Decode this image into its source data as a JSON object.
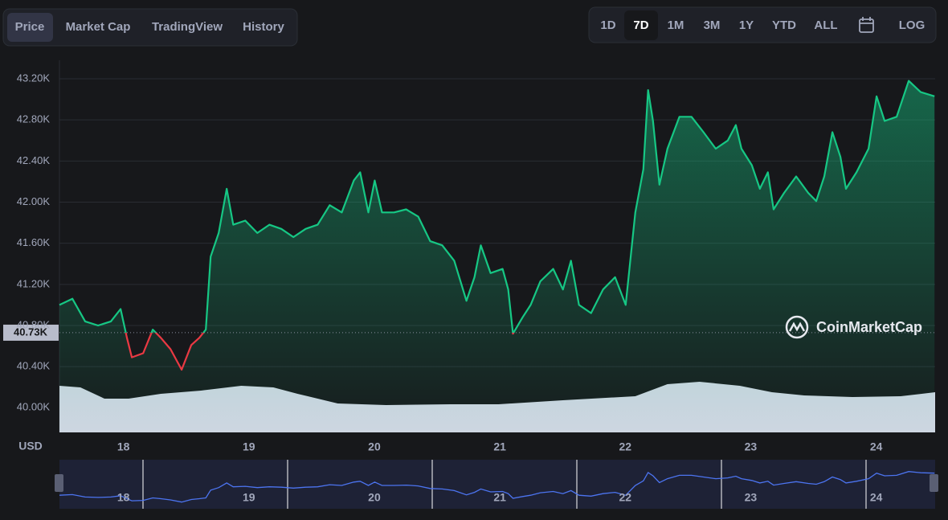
{
  "tabs": [
    "Price",
    "Market Cap",
    "TradingView",
    "History"
  ],
  "ranges": [
    "1D",
    "7D",
    "1M",
    "3M",
    "1Y",
    "YTD",
    "ALL"
  ],
  "log_button": "LOG",
  "watermark": "CoinMarketCap",
  "chart_data": {
    "type": "line",
    "y_label": "USD",
    "up_color": "#16c784",
    "down_color": "#ea3943",
    "nav_color": "#4c74f0",
    "reference": {
      "value": 40730,
      "label": "40.73K"
    },
    "xlim": [
      17.49,
      24.47
    ],
    "ylim": [
      39760,
      43380
    ],
    "xticks": [
      18,
      19,
      20,
      21,
      22,
      23,
      24
    ],
    "yticks": [
      {
        "value": 40000,
        "label": "40.00K"
      },
      {
        "value": 40400,
        "label": "40.40K"
      },
      {
        "value": 40800,
        "label": "40.80K"
      },
      {
        "value": 41200,
        "label": "41.20K"
      },
      {
        "value": 41600,
        "label": "41.60K"
      },
      {
        "value": 42000,
        "label": "42.00K"
      },
      {
        "value": 42400,
        "label": "42.40K"
      },
      {
        "value": 42800,
        "label": "42.80K"
      },
      {
        "value": 43200,
        "label": "43.20K"
      }
    ],
    "grid": true,
    "x": [
      17.49,
      17.593,
      17.695,
      17.798,
      17.9,
      17.977,
      18.028,
      18.067,
      18.157,
      18.234,
      18.298,
      18.375,
      18.464,
      18.541,
      18.605,
      18.657,
      18.695,
      18.759,
      18.823,
      18.875,
      18.971,
      19.067,
      19.163,
      19.259,
      19.355,
      19.452,
      19.548,
      19.644,
      19.74,
      19.836,
      19.887,
      19.952,
      20.003,
      20.061,
      20.157,
      20.253,
      20.349,
      20.445,
      20.541,
      20.637,
      20.734,
      20.798,
      20.849,
      20.926,
      21.022,
      21.067,
      21.105,
      21.182,
      21.246,
      21.323,
      21.426,
      21.503,
      21.567,
      21.631,
      21.727,
      21.823,
      21.919,
      22.003,
      22.08,
      22.144,
      22.182,
      22.221,
      22.272,
      22.336,
      22.432,
      22.528,
      22.624,
      22.721,
      22.817,
      22.881,
      22.926,
      23.009,
      23.073,
      23.137,
      23.182,
      23.266,
      23.362,
      23.458,
      23.522,
      23.586,
      23.651,
      23.715,
      23.759,
      23.843,
      23.939,
      24.003,
      24.067,
      24.163,
      24.259,
      24.355,
      24.465
    ],
    "values": [
      41000,
      41060,
      40840,
      40800,
      40840,
      40960,
      40680,
      40490,
      40530,
      40760,
      40680,
      40570,
      40370,
      40610,
      40680,
      40760,
      41470,
      41700,
      42130,
      41780,
      41820,
      41700,
      41780,
      41740,
      41660,
      41740,
      41780,
      41970,
      41900,
      42210,
      42290,
      41900,
      42210,
      41900,
      41900,
      41930,
      41860,
      41620,
      41580,
      41430,
      41040,
      41270,
      41580,
      41310,
      41350,
      41150,
      40720,
      40880,
      41000,
      41230,
      41350,
      41150,
      41430,
      41000,
      40920,
      41150,
      41270,
      41000,
      41900,
      42320,
      43090,
      42790,
      42170,
      42520,
      42830,
      42830,
      42680,
      42520,
      42600,
      42750,
      42520,
      42360,
      42130,
      42290,
      41930,
      42090,
      42250,
      42090,
      42010,
      42250,
      42680,
      42440,
      42130,
      42290,
      42520,
      43030,
      42790,
      42830,
      43180,
      43070,
      43030
    ],
    "volume": {
      "color": "#d1d6e3",
      "y2lim": [
        0,
        100
      ],
      "x": [
        17.49,
        17.657,
        17.849,
        18.041,
        18.298,
        18.618,
        18.939,
        19.195,
        19.388,
        19.708,
        20.093,
        20.606,
        20.99,
        21.503,
        22.08,
        22.336,
        22.592,
        22.913,
        23.169,
        23.426,
        23.811,
        24.195,
        24.47
      ],
      "values": [
        58,
        56,
        42,
        42,
        48,
        52,
        58,
        56,
        48,
        36,
        34,
        35,
        35,
        40,
        45,
        60,
        63,
        58,
        50,
        46,
        44,
        45,
        50
      ]
    }
  }
}
